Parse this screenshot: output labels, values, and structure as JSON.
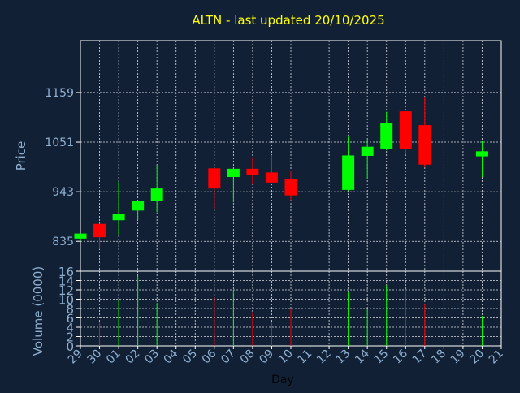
{
  "colors": {
    "background": "#112035",
    "frame": "#ffffff",
    "grid": "#ffffff",
    "title": "#ffff00",
    "axis_text": "#8fb0d0",
    "up": "#00ff00",
    "down": "#ff0000"
  },
  "chart_data": [
    {
      "type": "candlestick",
      "title": "ALTN - last updated 20/10/2025",
      "ylabel": "Price",
      "ylim": [
        770,
        1272
      ],
      "yticks": [
        835,
        943,
        1051,
        1159
      ],
      "grid": true,
      "categories": [
        "29",
        "30",
        "01",
        "02",
        "03",
        "04",
        "05",
        "06",
        "07",
        "08",
        "09",
        "10",
        "11",
        "12",
        "13",
        "14",
        "15",
        "16",
        "17",
        "18",
        "19",
        "20",
        "21"
      ],
      "candles": [
        {
          "day": "29",
          "open": 841,
          "close": 852,
          "high": 852,
          "low": 836
        },
        {
          "day": "30",
          "open": 873,
          "close": 844,
          "high": 873,
          "low": 818
        },
        {
          "day": "01",
          "open": 881,
          "close": 895,
          "high": 964,
          "low": 848
        },
        {
          "day": "02",
          "open": 902,
          "close": 922,
          "high": 924,
          "low": 883
        },
        {
          "day": "03",
          "open": 922,
          "close": 950,
          "high": 1001,
          "low": 898
        },
        {
          "day": "06",
          "open": 994,
          "close": 950,
          "high": 994,
          "low": 906
        },
        {
          "day": "07",
          "open": 975,
          "close": 993,
          "high": 994,
          "low": 920
        },
        {
          "day": "08",
          "open": 993,
          "close": 980,
          "high": 1018,
          "low": 960
        },
        {
          "day": "09",
          "open": 985,
          "close": 963,
          "high": 1023,
          "low": 963
        },
        {
          "day": "10",
          "open": 971,
          "close": 935,
          "high": 989,
          "low": 925
        },
        {
          "day": "13",
          "open": 947,
          "close": 1022,
          "high": 1063,
          "low": 945
        },
        {
          "day": "14",
          "open": 1021,
          "close": 1041,
          "high": 1056,
          "low": 971
        },
        {
          "day": "15",
          "open": 1037,
          "close": 1092,
          "high": 1117,
          "low": 1033
        },
        {
          "day": "16",
          "open": 1118,
          "close": 1037,
          "high": 1118,
          "low": 1024
        },
        {
          "day": "17",
          "open": 1088,
          "close": 1002,
          "high": 1148,
          "low": 996
        },
        {
          "day": "20",
          "open": 1020,
          "close": 1031,
          "high": 1053,
          "low": 975
        }
      ]
    },
    {
      "type": "bar",
      "xlabel": "Day",
      "ylabel": "Volume (0000)",
      "ylim": [
        0,
        16
      ],
      "yticks": [
        0,
        2,
        4,
        6,
        8,
        10,
        12,
        14,
        16
      ],
      "grid": true,
      "categories": [
        "29",
        "30",
        "01",
        "02",
        "03",
        "04",
        "05",
        "06",
        "07",
        "08",
        "09",
        "10",
        "11",
        "12",
        "13",
        "14",
        "15",
        "16",
        "17",
        "18",
        "19",
        "20",
        "21"
      ],
      "bars": [
        {
          "day": "30",
          "value": 5.0,
          "direction": "down"
        },
        {
          "day": "01",
          "value": 9.8,
          "direction": "up"
        },
        {
          "day": "02",
          "value": 15.0,
          "direction": "up"
        },
        {
          "day": "03",
          "value": 9.2,
          "direction": "up"
        },
        {
          "day": "06",
          "value": 10.4,
          "direction": "down"
        },
        {
          "day": "07",
          "value": 12.0,
          "direction": "up"
        },
        {
          "day": "08",
          "value": 7.2,
          "direction": "down"
        },
        {
          "day": "09",
          "value": 5.2,
          "direction": "down"
        },
        {
          "day": "10",
          "value": 8.0,
          "direction": "down"
        },
        {
          "day": "13",
          "value": 11.6,
          "direction": "up"
        },
        {
          "day": "14",
          "value": 8.0,
          "direction": "up"
        },
        {
          "day": "15",
          "value": 13.0,
          "direction": "up"
        },
        {
          "day": "16",
          "value": 12.0,
          "direction": "down"
        },
        {
          "day": "17",
          "value": 9.0,
          "direction": "down"
        },
        {
          "day": "20",
          "value": 6.4,
          "direction": "up"
        }
      ]
    }
  ]
}
